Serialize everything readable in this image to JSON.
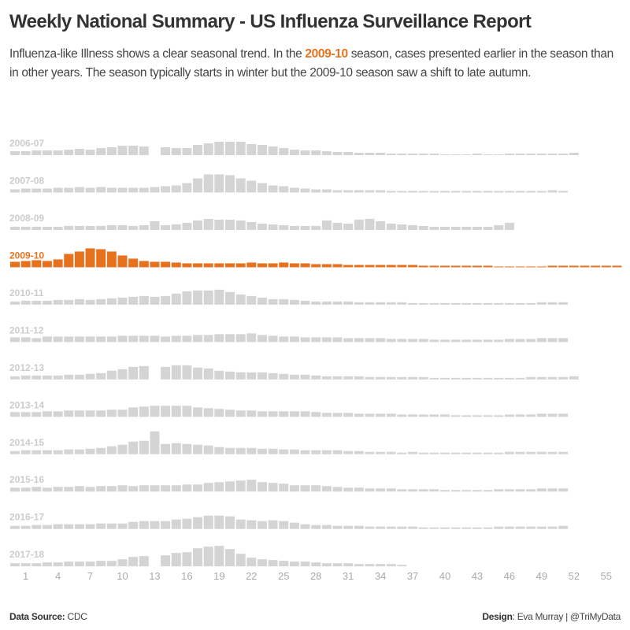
{
  "title": "Weekly National Summary - US Influenza Surveillance Report",
  "subtitle": {
    "pre": "Influenza-like Illness shows a clear seasonal trend. In the ",
    "highlight": "2009-10",
    "post": " season, cases presented earlier in the season than in other years. The season typically starts in winter but the 2009-10 season saw a shift to late autumn."
  },
  "footer": {
    "source_label": "Data Source:",
    "source_value": " CDC",
    "design_label": "Design",
    "design_value": ": Eva Murray | @TriMyData"
  },
  "colors": {
    "highlight": "#e8711e",
    "default_bar": "#d4d4d4",
    "default_label": "#cccccc",
    "axis_text": "#aaaaaa"
  },
  "chart_data": {
    "type": "bar",
    "layout": "small multiples, one row per season",
    "highlight_series": "2009-10",
    "x_ticks": [
      1,
      4,
      7,
      10,
      13,
      16,
      19,
      22,
      25,
      28,
      31,
      34,
      37,
      40,
      43,
      46,
      49,
      52,
      55
    ],
    "x_start": 0,
    "y_axis_shown": false,
    "grid": false,
    "series": [
      {
        "name": "2006-07",
        "values": [
          1.5,
          1.5,
          1.8,
          1.8,
          1.8,
          2.1,
          2.4,
          2.1,
          2.7,
          3.0,
          3.6,
          3.6,
          3.3,
          null,
          3.0,
          2.7,
          2.7,
          3.9,
          4.5,
          5.1,
          5.1,
          5.1,
          4.2,
          3.9,
          3.3,
          2.7,
          2.1,
          1.8,
          1.8,
          1.5,
          1.2,
          1.2,
          0.9,
          0.9,
          0.9,
          0.6,
          0.6,
          0.6,
          0.6,
          0.6,
          0.3,
          0.3,
          0.3,
          0.6,
          0.3,
          0.3,
          0.6,
          0.6,
          0.6,
          0.6,
          0.6,
          0.6,
          0.9
        ]
      },
      {
        "name": "2007-08",
        "values": [
          1.2,
          1.5,
          1.5,
          1.5,
          1.8,
          1.8,
          2.1,
          1.8,
          2.1,
          1.8,
          1.8,
          1.8,
          1.8,
          2.1,
          2.4,
          2.7,
          3.6,
          5.4,
          6.9,
          6.9,
          6.6,
          5.4,
          4.5,
          3.6,
          2.7,
          2.4,
          1.8,
          1.5,
          1.2,
          1.2,
          0.9,
          0.9,
          0.9,
          0.9,
          0.9,
          0.6,
          0.6,
          0.6,
          0.6,
          0.6,
          0.6,
          0.6,
          0.6,
          0.6,
          0.6,
          0.6,
          0.6,
          0.6,
          0.6,
          0.6,
          0.9,
          0.6
        ]
      },
      {
        "name": "2008-09",
        "values": [
          1.2,
          1.2,
          1.2,
          1.2,
          1.2,
          1.5,
          1.5,
          1.5,
          1.5,
          1.8,
          1.8,
          1.5,
          1.8,
          3.3,
          1.8,
          2.1,
          2.7,
          3.6,
          4.2,
          3.9,
          3.9,
          3.6,
          3.0,
          2.4,
          2.1,
          1.8,
          1.5,
          1.5,
          1.5,
          3.6,
          2.7,
          2.4,
          3.9,
          4.2,
          3.3,
          2.4,
          2.1,
          1.8,
          1.5,
          1.2,
          1.2,
          1.2,
          1.2,
          1.2,
          1.2,
          1.8,
          2.7
        ]
      },
      {
        "name": "2009-10",
        "values": [
          2.1,
          2.4,
          2.7,
          2.4,
          3.0,
          5.1,
          6.0,
          7.2,
          6.9,
          6.0,
          4.5,
          3.3,
          2.4,
          2.1,
          2.1,
          1.8,
          1.5,
          1.5,
          1.5,
          1.5,
          1.5,
          1.5,
          1.8,
          1.5,
          1.5,
          1.8,
          1.5,
          1.5,
          1.2,
          1.2,
          1.2,
          0.9,
          0.9,
          0.9,
          0.9,
          0.9,
          0.9,
          0.9,
          0.6,
          0.6,
          0.6,
          0.6,
          0.6,
          0.6,
          0.6,
          0.3,
          0.3,
          0.3,
          0.3,
          0.3,
          0.6,
          0.6,
          0.6,
          0.6,
          0.6,
          0.6,
          0.6
        ]
      },
      {
        "name": "2010-11",
        "values": [
          1.2,
          1.5,
          1.5,
          1.5,
          1.8,
          1.8,
          2.1,
          1.8,
          2.1,
          2.4,
          2.7,
          3.0,
          3.3,
          3.0,
          3.3,
          4.2,
          5.1,
          5.4,
          5.4,
          5.7,
          4.8,
          3.9,
          3.3,
          2.7,
          2.1,
          2.1,
          1.8,
          1.5,
          1.2,
          1.2,
          1.2,
          1.2,
          0.9,
          0.9,
          0.9,
          0.9,
          0.9,
          0.6,
          0.6,
          0.6,
          0.6,
          0.6,
          0.6,
          0.6,
          0.6,
          0.6,
          0.6,
          0.6,
          0.6,
          0.9,
          0.9,
          0.9
        ]
      },
      {
        "name": "2011-12",
        "values": [
          1.8,
          1.8,
          1.5,
          2.1,
          2.1,
          2.1,
          2.1,
          2.1,
          2.1,
          2.1,
          2.4,
          2.4,
          2.4,
          2.4,
          2.1,
          2.4,
          2.4,
          2.7,
          2.7,
          3.0,
          3.0,
          3.0,
          3.3,
          2.7,
          2.4,
          2.1,
          2.1,
          1.8,
          1.8,
          1.8,
          1.8,
          1.5,
          1.5,
          1.5,
          1.5,
          1.2,
          1.2,
          1.2,
          1.2,
          0.9,
          0.9,
          0.9,
          0.9,
          0.9,
          0.9,
          0.9,
          1.2,
          1.2,
          1.2,
          1.5,
          1.5,
          1.5
        ]
      },
      {
        "name": "2012-13",
        "values": [
          1.2,
          1.5,
          1.5,
          1.5,
          1.5,
          1.8,
          1.8,
          2.1,
          2.4,
          3.3,
          3.9,
          4.8,
          5.1,
          null,
          4.8,
          5.4,
          5.4,
          4.5,
          4.2,
          3.3,
          3.0,
          2.7,
          2.7,
          2.7,
          2.4,
          2.1,
          1.8,
          1.8,
          1.5,
          1.2,
          1.2,
          1.2,
          1.2,
          0.9,
          0.9,
          0.9,
          0.9,
          0.9,
          0.9,
          0.6,
          0.6,
          0.6,
          0.6,
          0.6,
          0.6,
          0.6,
          0.6,
          0.6,
          0.9,
          0.9,
          0.9,
          0.9,
          1.2
        ]
      },
      {
        "name": "2013-14",
        "values": [
          1.8,
          1.8,
          1.8,
          2.1,
          2.1,
          2.4,
          2.4,
          2.4,
          2.4,
          2.7,
          2.7,
          3.6,
          3.9,
          4.2,
          4.2,
          4.2,
          4.2,
          3.6,
          3.3,
          3.0,
          2.7,
          2.4,
          2.4,
          2.1,
          2.1,
          2.1,
          2.1,
          2.1,
          1.8,
          1.5,
          1.5,
          1.5,
          1.2,
          1.2,
          1.2,
          1.2,
          0.9,
          0.9,
          0.9,
          0.9,
          0.9,
          0.6,
          0.6,
          0.6,
          0.6,
          0.6,
          0.9,
          0.9,
          0.9,
          1.2,
          1.2,
          1.2
        ]
      },
      {
        "name": "2014-15",
        "values": [
          1.2,
          1.5,
          1.5,
          1.5,
          1.5,
          1.8,
          1.8,
          2.1,
          2.4,
          3.0,
          3.6,
          4.8,
          5.1,
          8.7,
          3.9,
          4.2,
          3.9,
          3.6,
          3.3,
          2.7,
          2.4,
          2.4,
          2.4,
          2.1,
          2.1,
          1.8,
          1.8,
          1.5,
          1.5,
          1.5,
          1.5,
          1.2,
          1.2,
          0.9,
          0.9,
          0.9,
          0.6,
          0.9,
          0.6,
          0.6,
          0.6,
          0.6,
          0.6,
          0.6,
          0.6,
          0.6,
          0.9,
          0.9,
          0.9,
          0.9,
          0.9,
          0.9
        ]
      },
      {
        "name": "2015-16",
        "values": [
          1.5,
          1.5,
          1.8,
          1.5,
          1.8,
          1.8,
          2.1,
          1.8,
          2.1,
          2.1,
          2.4,
          2.1,
          2.4,
          2.4,
          2.4,
          2.4,
          2.7,
          2.7,
          3.3,
          3.6,
          3.9,
          4.2,
          4.5,
          3.6,
          3.3,
          3.0,
          2.4,
          2.4,
          2.4,
          2.1,
          1.8,
          1.5,
          1.5,
          1.2,
          1.2,
          1.2,
          0.9,
          0.9,
          0.9,
          0.9,
          0.6,
          0.6,
          0.6,
          0.6,
          0.6,
          0.9,
          0.9,
          0.9,
          0.9,
          1.2,
          1.2,
          1.2
        ]
      },
      {
        "name": "2016-17",
        "values": [
          1.2,
          1.2,
          1.5,
          1.5,
          1.8,
          1.8,
          1.8,
          1.8,
          2.1,
          2.1,
          2.1,
          2.7,
          3.0,
          3.0,
          3.0,
          3.6,
          3.9,
          4.5,
          5.1,
          5.1,
          4.8,
          3.6,
          3.3,
          3.0,
          3.3,
          3.0,
          2.4,
          1.8,
          1.5,
          1.5,
          1.2,
          1.2,
          1.2,
          0.9,
          0.9,
          0.9,
          0.9,
          0.9,
          0.6,
          0.6,
          0.6,
          0.6,
          0.6,
          0.6,
          0.6,
          0.9,
          0.9,
          0.9,
          0.9,
          0.9,
          0.9,
          1.2
        ]
      },
      {
        "name": "2017-18",
        "values": [
          1.2,
          1.2,
          1.2,
          1.5,
          1.5,
          1.8,
          1.8,
          1.8,
          2.1,
          2.1,
          2.7,
          3.6,
          3.9,
          null,
          4.2,
          5.1,
          5.4,
          6.9,
          7.5,
          7.8,
          6.6,
          4.8,
          3.3,
          2.7,
          2.4,
          2.1,
          1.8,
          1.8,
          1.5,
          1.2,
          1.2,
          1.2,
          0.9,
          0.9,
          0.9,
          0.9,
          0.6
        ]
      }
    ]
  }
}
